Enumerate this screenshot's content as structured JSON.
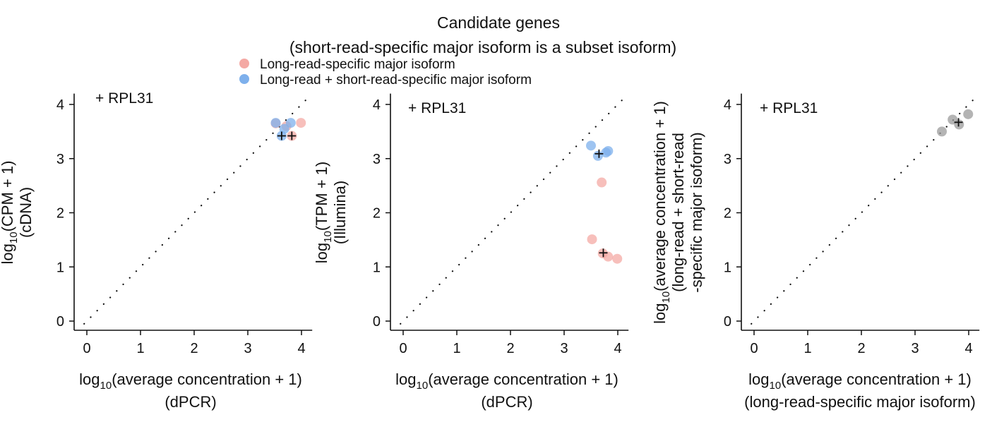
{
  "figure": {
    "title_line1": "Candidate genes",
    "title_line2": "(short-read-specific major isoform is a subset isoform)",
    "legend": [
      {
        "label": "Long-read-specific major isoform",
        "color": "#f4a9a4"
      },
      {
        "label": "Long-read + short-read-specific major isoform",
        "color": "#7eb0ec"
      }
    ]
  },
  "log_prefix": "log",
  "log_subscript": "10",
  "chart_data": [
    {
      "type": "scatter",
      "annotation": "+ RPL31",
      "x_label_main": "(average concentration + 1)",
      "x_label_sub": "(dPCR)",
      "y_label_main": "(CPM + 1)",
      "y_label_sub": [
        "(cDNA)"
      ],
      "xlim": [
        -0.2,
        4.2
      ],
      "ylim": [
        -0.15,
        4.2
      ],
      "xticks": [
        "0",
        "1",
        "2",
        "3",
        "4"
      ],
      "yticks": [
        "0",
        "1",
        "2",
        "3",
        "4"
      ],
      "diagonal": true,
      "series": [
        {
          "color": "#f4a9a4",
          "points": [
            {
              "x": 3.52,
              "y": 3.65
            },
            {
              "x": 3.72,
              "y": 3.6
            },
            {
              "x": 3.82,
              "y": 3.42
            },
            {
              "x": 3.99,
              "y": 3.66
            }
          ]
        },
        {
          "color": "#7eb0ec",
          "points": [
            {
              "x": 3.52,
              "y": 3.66
            },
            {
              "x": 3.68,
              "y": 3.55
            },
            {
              "x": 3.63,
              "y": 3.42
            },
            {
              "x": 3.8,
              "y": 3.66
            }
          ]
        }
      ],
      "crosses": [
        {
          "x": 3.63,
          "y": 3.42
        },
        {
          "x": 3.82,
          "y": 3.42
        }
      ]
    },
    {
      "type": "scatter",
      "annotation": "+ RPL31",
      "x_label_main": "(average concentration + 1)",
      "x_label_sub": "(dPCR)",
      "y_label_main": "(TPM + 1)",
      "y_label_sub": [
        "(Illumina)"
      ],
      "xlim": [
        -0.2,
        4.2
      ],
      "ylim": [
        -0.15,
        4.2
      ],
      "xticks": [
        "0",
        "1",
        "2",
        "3",
        "4"
      ],
      "yticks": [
        "0",
        "1",
        "2",
        "3",
        "4"
      ],
      "diagonal": true,
      "series": [
        {
          "color": "#f4a9a4",
          "points": [
            {
              "x": 3.7,
              "y": 2.56
            },
            {
              "x": 3.52,
              "y": 1.51
            },
            {
              "x": 3.82,
              "y": 1.19
            },
            {
              "x": 3.99,
              "y": 1.15
            },
            {
              "x": 3.72,
              "y": 1.25
            }
          ]
        },
        {
          "color": "#7eb0ec",
          "points": [
            {
              "x": 3.5,
              "y": 3.24
            },
            {
              "x": 3.63,
              "y": 3.05
            },
            {
              "x": 3.78,
              "y": 3.11
            },
            {
              "x": 3.82,
              "y": 3.14
            }
          ]
        }
      ],
      "crosses": [
        {
          "x": 3.65,
          "y": 3.09
        },
        {
          "x": 3.73,
          "y": 1.26
        }
      ]
    },
    {
      "type": "scatter",
      "annotation": "+ RPL31",
      "x_label_main": "(average concentration + 1)",
      "x_label_sub": "(long-read-specific major isoform)",
      "y_label_main": "(average concentration + 1)",
      "y_label_sub": [
        "(long-read + short-read",
        "-specific major isoform)"
      ],
      "xlim": [
        -0.2,
        4.2
      ],
      "ylim": [
        -0.15,
        4.2
      ],
      "xticks": [
        "0",
        "1",
        "2",
        "3",
        "4"
      ],
      "yticks": [
        "0",
        "1",
        "2",
        "3",
        "4"
      ],
      "diagonal": true,
      "series": [
        {
          "color": "#9b9b9b",
          "points": [
            {
              "x": 3.5,
              "y": 3.5
            },
            {
              "x": 3.7,
              "y": 3.72
            },
            {
              "x": 3.82,
              "y": 3.63
            },
            {
              "x": 3.99,
              "y": 3.82
            }
          ]
        }
      ],
      "crosses": [
        {
          "x": 3.81,
          "y": 3.67
        }
      ]
    }
  ]
}
